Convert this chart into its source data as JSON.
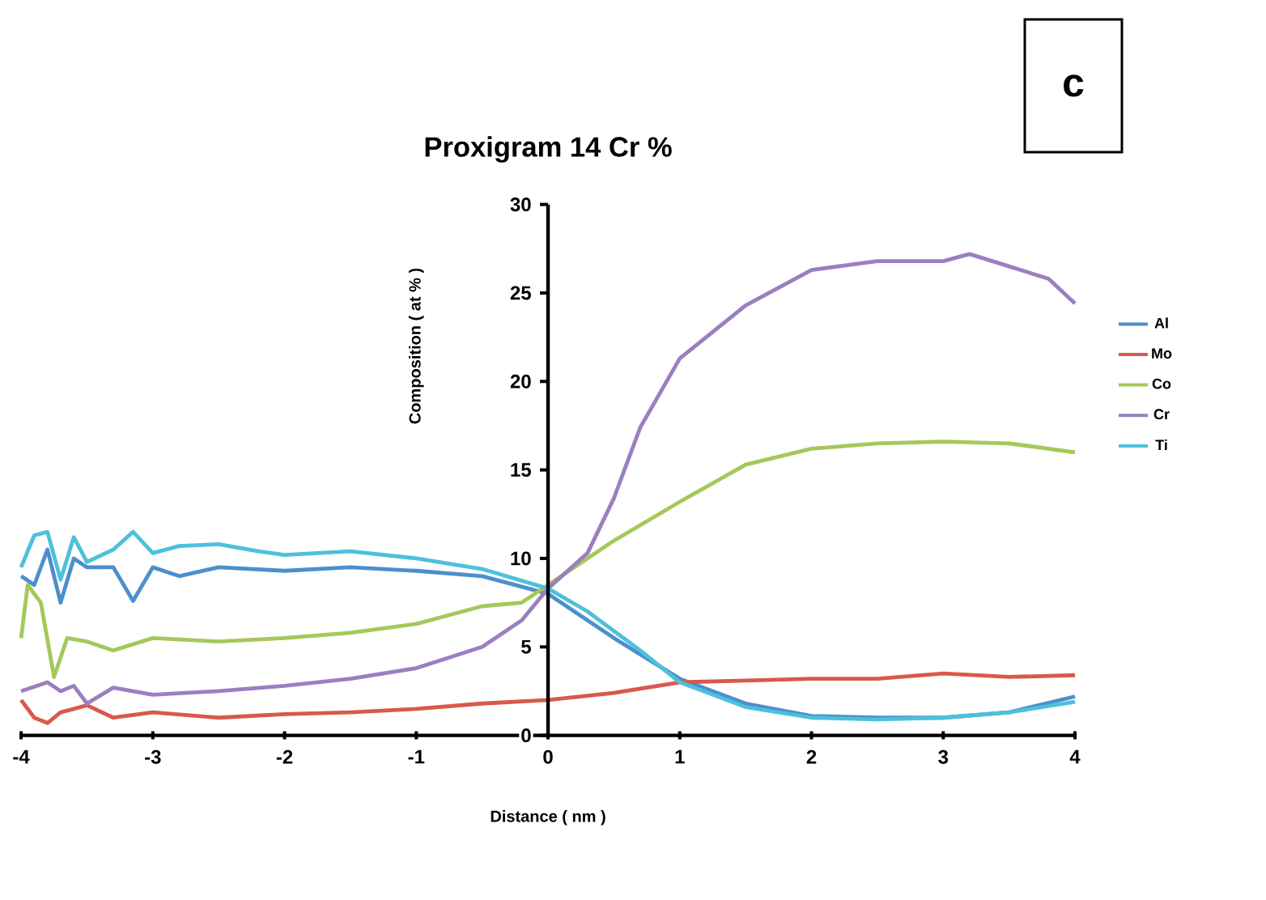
{
  "chart_data": {
    "type": "line",
    "title": "Proxigram 14 Cr %",
    "xlabel": "Distance ( nm )",
    "ylabel": "Composition ( at % )",
    "annotations": [
      "c"
    ],
    "xlim": [
      -4,
      4
    ],
    "ylim": [
      0,
      30
    ],
    "xticks": [
      -4,
      -3,
      -2,
      -1,
      0,
      1,
      2,
      3,
      4
    ],
    "yticks": [
      0,
      5,
      10,
      15,
      20,
      25,
      30
    ],
    "legend": "right",
    "grid": false,
    "marker": "none",
    "line_style": "solid",
    "series": [
      {
        "name": "Al",
        "color": "#4d8fcc",
        "x": [
          -4,
          -3.9,
          -3.8,
          -3.7,
          -3.6,
          -3.5,
          -3.3,
          -3.15,
          -3,
          -2.8,
          -2.5,
          -2,
          -1.5,
          -1,
          -0.5,
          0,
          0.5,
          1,
          1.5,
          2,
          2.5,
          3,
          3.5,
          4
        ],
        "values": [
          9,
          8.5,
          10.5,
          7.5,
          10,
          9.5,
          9.5,
          7.6,
          9.5,
          9,
          9.5,
          9.3,
          9.5,
          9.3,
          9,
          8,
          5.5,
          3.2,
          1.8,
          1.1,
          1,
          1,
          1.3,
          2.2
        ]
      },
      {
        "name": "Mo",
        "color": "#d9594c",
        "x": [
          -4,
          -3.9,
          -3.8,
          -3.7,
          -3.6,
          -3.5,
          -3.3,
          -3,
          -2.5,
          -2,
          -1.5,
          -1,
          -0.5,
          0,
          0.5,
          1,
          1.5,
          2,
          2.5,
          3,
          3.5,
          4
        ],
        "values": [
          2,
          1,
          0.7,
          1.3,
          1.5,
          1.7,
          1,
          1.3,
          1,
          1.2,
          1.3,
          1.5,
          1.8,
          2,
          2.4,
          3,
          3.1,
          3.2,
          3.2,
          3.5,
          3.3,
          3.4
        ]
      },
      {
        "name": "Co",
        "color": "#a5c85a",
        "x": [
          -4,
          -3.95,
          -3.85,
          -3.75,
          -3.65,
          -3.5,
          -3.3,
          -3,
          -2.5,
          -2,
          -1.5,
          -1,
          -0.5,
          -0.2,
          0,
          0.5,
          1,
          1.5,
          2,
          2.5,
          3,
          3.5,
          4
        ],
        "values": [
          5.5,
          8.5,
          7.5,
          3.3,
          5.5,
          5.3,
          4.8,
          5.5,
          5.3,
          5.5,
          5.8,
          6.3,
          7.3,
          7.5,
          8.5,
          11,
          13.2,
          15.3,
          16.2,
          16.5,
          16.6,
          16.5,
          16
        ]
      },
      {
        "name": "Cr",
        "color": "#9b7fc0",
        "x": [
          -4,
          -3.8,
          -3.7,
          -3.6,
          -3.5,
          -3.3,
          -3,
          -2.5,
          -2,
          -1.5,
          -1,
          -0.5,
          -0.2,
          0,
          0.3,
          0.5,
          0.7,
          1,
          1.5,
          2,
          2.5,
          3,
          3.2,
          3.5,
          3.8,
          4
        ],
        "values": [
          2.5,
          3,
          2.5,
          2.8,
          1.8,
          2.7,
          2.3,
          2.5,
          2.8,
          3.2,
          3.8,
          5,
          6.5,
          8.3,
          10.3,
          13.4,
          17.4,
          21.3,
          24.3,
          26.3,
          26.8,
          26.8,
          27.2,
          26.5,
          25.8,
          24.4
        ]
      },
      {
        "name": "Ti",
        "color": "#4dc0dc",
        "x": [
          -4,
          -3.9,
          -3.8,
          -3.7,
          -3.6,
          -3.5,
          -3.3,
          -3.15,
          -3,
          -2.8,
          -2.5,
          -2.2,
          -2,
          -1.5,
          -1,
          -0.5,
          0,
          0.3,
          0.7,
          1,
          1.5,
          2,
          2.5,
          3,
          3.5,
          4
        ],
        "values": [
          9.5,
          11.3,
          11.5,
          8.8,
          11.2,
          9.8,
          10.5,
          11.5,
          10.3,
          10.7,
          10.8,
          10.4,
          10.2,
          10.4,
          10,
          9.4,
          8.3,
          7,
          4.8,
          3,
          1.6,
          1,
          0.9,
          1,
          1.3,
          1.9
        ]
      }
    ]
  }
}
